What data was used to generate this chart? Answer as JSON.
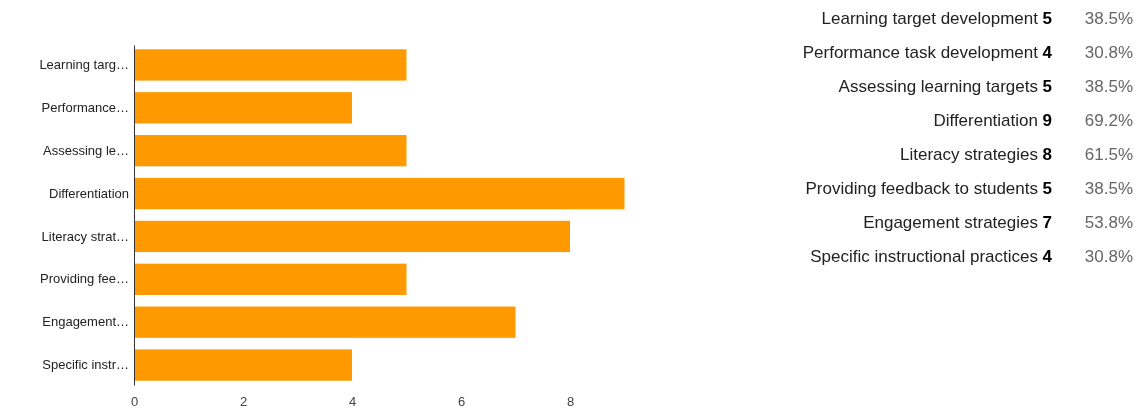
{
  "chart_data": [
    {
      "type": "bar",
      "orientation": "horizontal",
      "categories": [
        "Learning targ…",
        "Performance…",
        "Assessing le…",
        "Differentiation",
        "Literacy strat…",
        "Providing fee…",
        "Engagement…",
        "Specific instr…"
      ],
      "values": [
        5,
        4,
        5,
        9,
        8,
        5,
        7,
        4
      ],
      "color": "#ff9900",
      "xlim": [
        0,
        9
      ],
      "xticks": [
        0,
        2,
        4,
        6,
        8
      ],
      "grid": false
    },
    {
      "type": "other",
      "categories": [
        "Learning target development",
        "Performance task development",
        "Assessing learning targets",
        "Differentiation",
        "Literacy strategies",
        "Providing feedback to students",
        "Engagement strategies",
        "Specific instructional practices"
      ],
      "series": [
        {
          "color": "#000000",
          "values": [
            5,
            4,
            5,
            9,
            8,
            5,
            7,
            4
          ]
        },
        {
          "color": "#666666",
          "values": [
            38.5,
            30.8,
            38.5,
            69.2,
            61.5,
            38.5,
            53.8,
            30.8
          ],
          "value_labels": [
            "38.5%",
            "30.8%",
            "38.5%",
            "69.2%",
            "61.5%",
            "38.5%",
            "53.8%",
            "30.8%"
          ]
        }
      ],
      "data_labels": true
    }
  ]
}
